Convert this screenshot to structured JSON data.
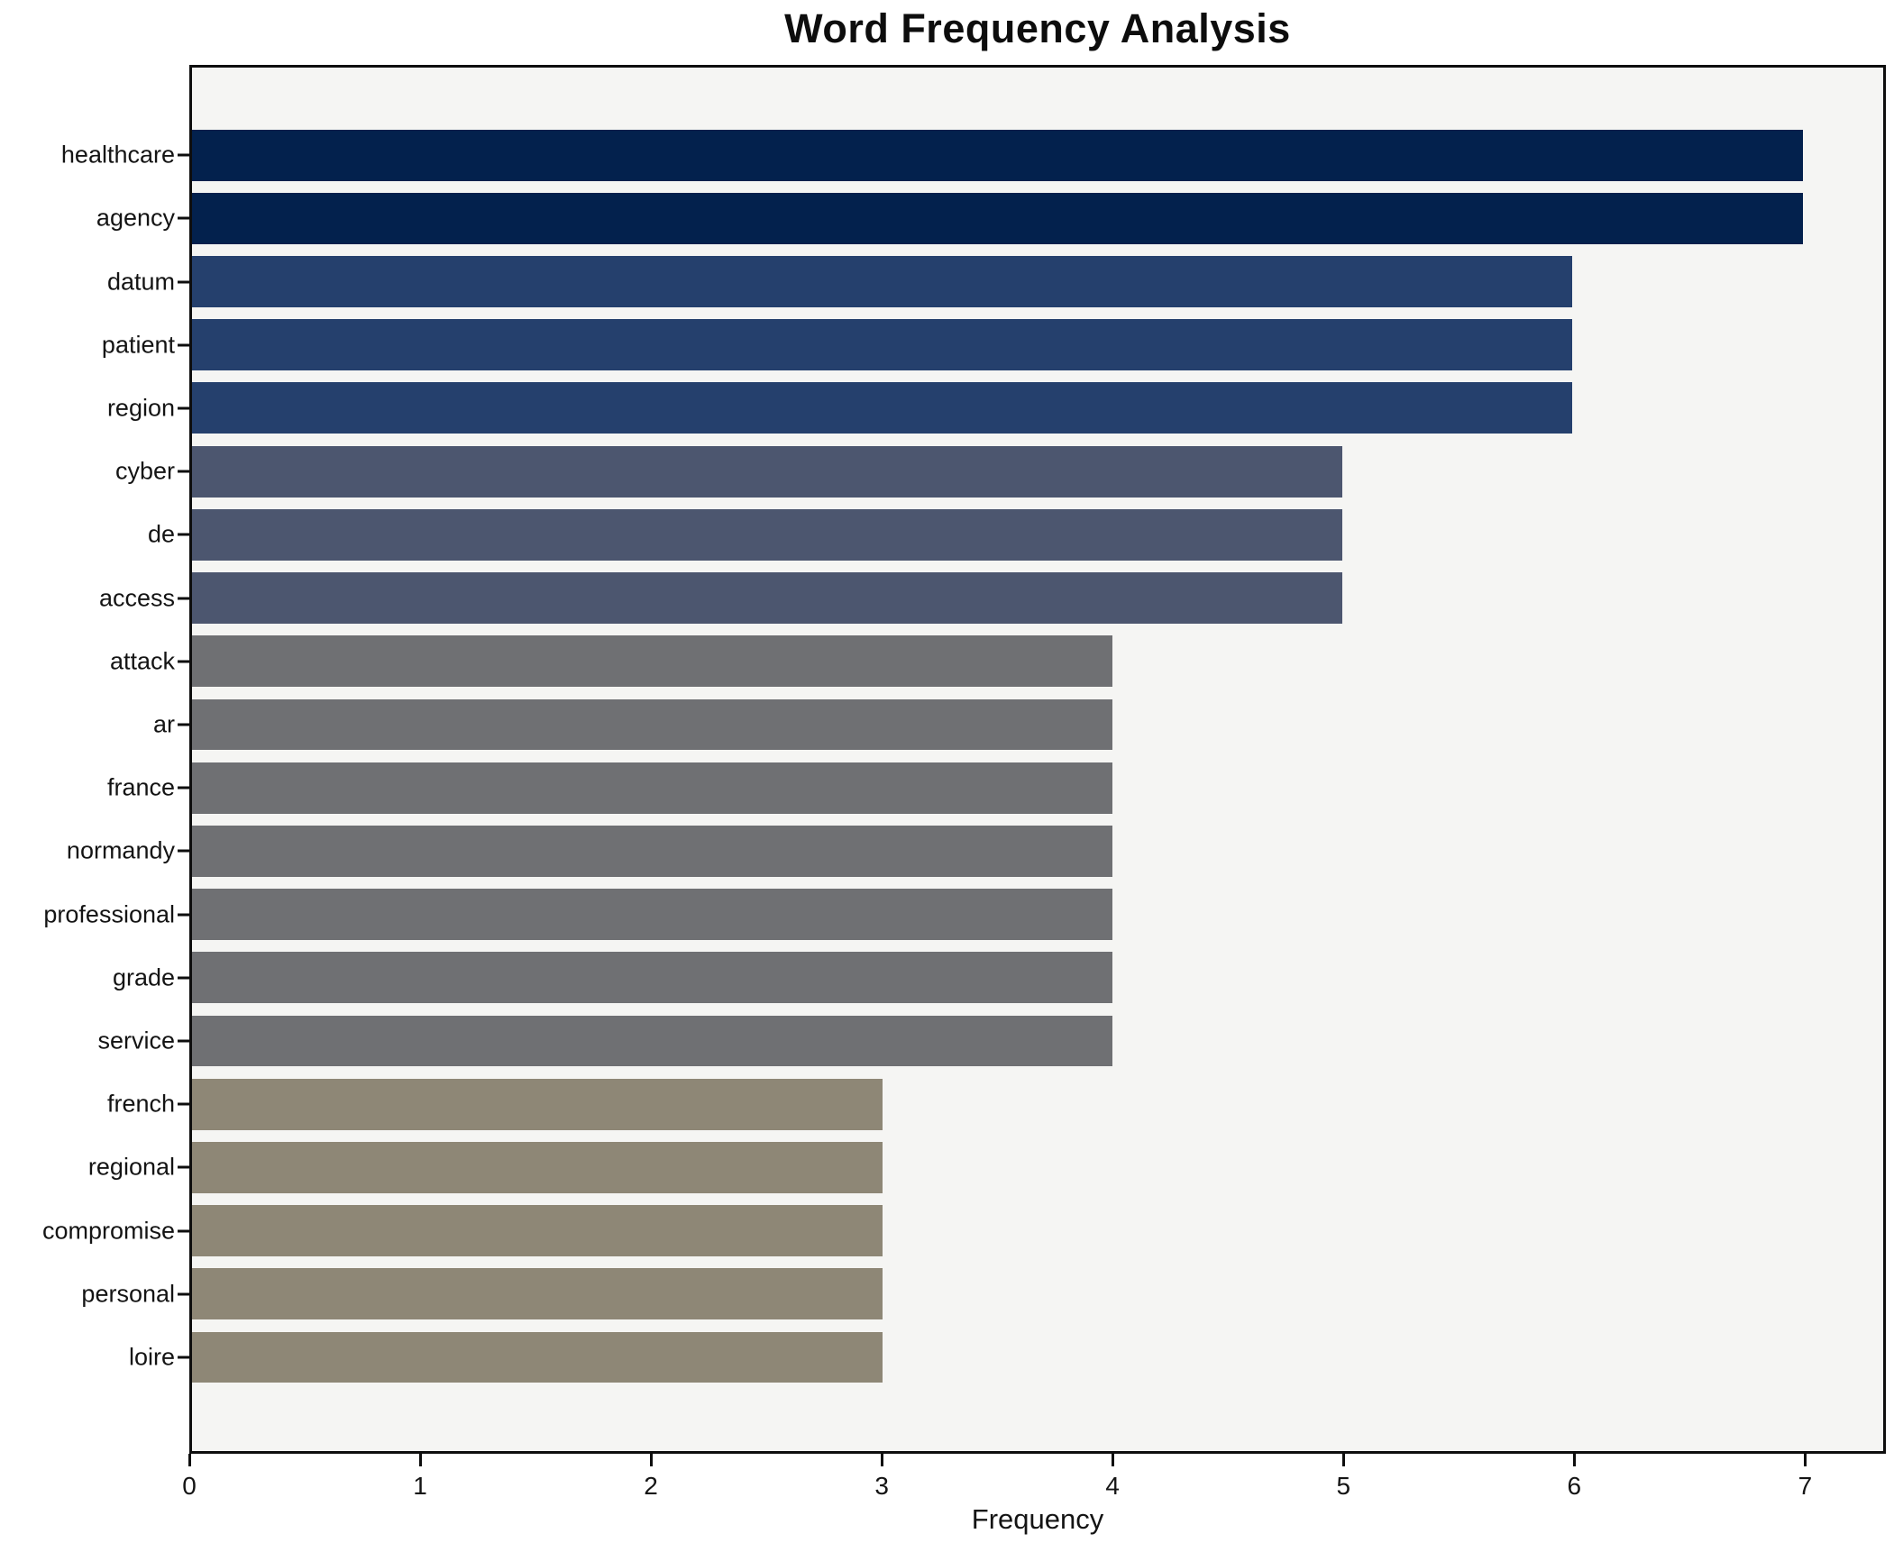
{
  "chart_data": {
    "type": "bar",
    "orientation": "horizontal",
    "title": "Word Frequency Analysis",
    "xlabel": "Frequency",
    "ylabel": "",
    "categories": [
      "healthcare",
      "agency",
      "datum",
      "patient",
      "region",
      "cyber",
      "de",
      "access",
      "attack",
      "ar",
      "france",
      "normandy",
      "professional",
      "grade",
      "service",
      "french",
      "regional",
      "compromise",
      "personal",
      "loire"
    ],
    "values": [
      7,
      7,
      6,
      6,
      6,
      5,
      5,
      5,
      4,
      4,
      4,
      4,
      4,
      4,
      4,
      3,
      3,
      3,
      3,
      3
    ],
    "x_ticks": [
      0,
      1,
      2,
      3,
      4,
      5,
      6,
      7
    ],
    "xlim": [
      0,
      7.35
    ],
    "grid": false,
    "legend_position": "none",
    "colors_by_value": {
      "7": "#03214d",
      "6": "#25406d",
      "5": "#4c566f",
      "4": "#6f7073",
      "3": "#8e8776"
    },
    "plot_background": "#f5f5f3",
    "figure_background": "#ffffff",
    "spine_color": "#0e0e0e",
    "text_color": "#141414"
  }
}
